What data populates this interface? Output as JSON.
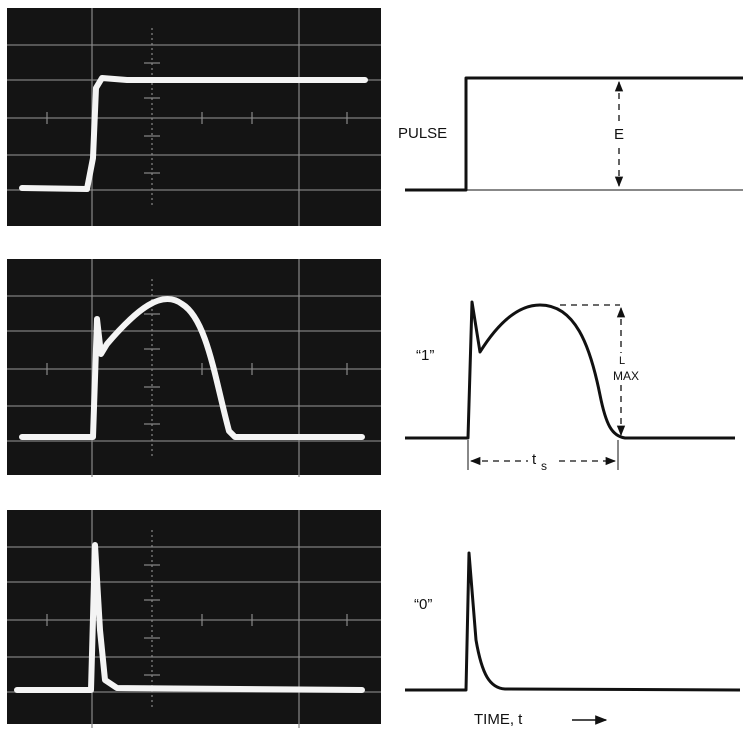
{
  "figure": {
    "pulse_label": "PULSE",
    "amplitude_label": "E",
    "one_label": "“1”",
    "max_label_l": "L",
    "max_label_max": "MAX",
    "ts_label": "t",
    "ts_subscript": "s",
    "zero_label": "“0”",
    "time_axis_label": "TIME, t"
  }
}
